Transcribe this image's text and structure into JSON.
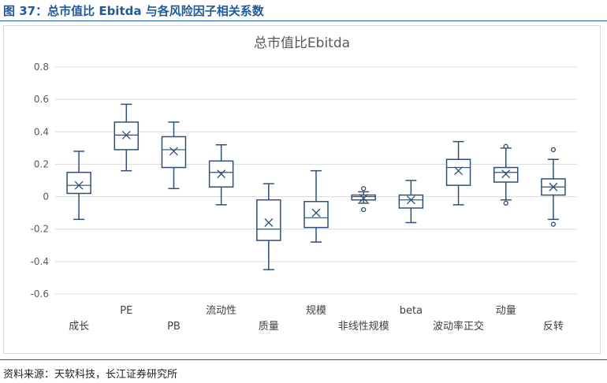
{
  "figure_title": "图 37：总市值比 Ebitda 与各风险因子相关系数",
  "source": "资料来源：天软科技，长江证券研究所",
  "colors": {
    "title": "#1f5a9e",
    "box": "#2e4f7a",
    "grid": "#d9d9d9"
  },
  "chart_data": {
    "type": "boxplot",
    "title": "总市值比Ebitda",
    "ylim": [
      -0.6,
      0.8
    ],
    "yticks": [
      -0.6,
      -0.4,
      -0.2,
      0,
      0.2,
      0.4,
      0.6,
      0.8
    ],
    "ytick_labels": [
      "-0.6",
      "-0.4",
      "-0.2",
      "0",
      "0.2",
      "0.4",
      "0.6",
      "0.8"
    ],
    "grid": true,
    "categories": [
      "成长",
      "PE",
      "PB",
      "流动性",
      "质量",
      "规模",
      "非线性规模",
      "beta",
      "波动率正交",
      "动量",
      "反转"
    ],
    "boxes": [
      {
        "min": -0.14,
        "q1": 0.02,
        "median": 0.07,
        "q3": 0.15,
        "max": 0.28,
        "mean": 0.07,
        "outliers": []
      },
      {
        "min": 0.16,
        "q1": 0.29,
        "median": 0.38,
        "q3": 0.46,
        "max": 0.57,
        "mean": 0.38,
        "outliers": []
      },
      {
        "min": 0.05,
        "q1": 0.18,
        "median": 0.29,
        "q3": 0.37,
        "max": 0.46,
        "mean": 0.28,
        "outliers": []
      },
      {
        "min": -0.05,
        "q1": 0.06,
        "median": 0.15,
        "q3": 0.22,
        "max": 0.32,
        "mean": 0.14,
        "outliers": []
      },
      {
        "min": -0.45,
        "q1": -0.27,
        "median": -0.2,
        "q3": -0.02,
        "max": 0.08,
        "mean": -0.16,
        "outliers": []
      },
      {
        "min": -0.28,
        "q1": -0.19,
        "median": -0.13,
        "q3": -0.03,
        "max": 0.16,
        "mean": -0.1,
        "outliers": []
      },
      {
        "min": -0.04,
        "q1": -0.02,
        "median": 0.0,
        "q3": 0.01,
        "max": 0.03,
        "mean": -0.01,
        "outliers": [
          0.05,
          -0.08
        ]
      },
      {
        "min": -0.16,
        "q1": -0.07,
        "median": -0.02,
        "q3": 0.01,
        "max": 0.1,
        "mean": -0.02,
        "outliers": []
      },
      {
        "min": -0.05,
        "q1": 0.07,
        "median": 0.18,
        "q3": 0.23,
        "max": 0.34,
        "mean": 0.16,
        "outliers": []
      },
      {
        "min": -0.02,
        "q1": 0.09,
        "median": 0.15,
        "q3": 0.18,
        "max": 0.3,
        "mean": 0.14,
        "outliers": [
          0.31,
          -0.04
        ]
      },
      {
        "min": -0.14,
        "q1": 0.01,
        "median": 0.06,
        "q3": 0.11,
        "max": 0.23,
        "mean": 0.06,
        "outliers": [
          0.29,
          -0.17
        ]
      }
    ]
  }
}
